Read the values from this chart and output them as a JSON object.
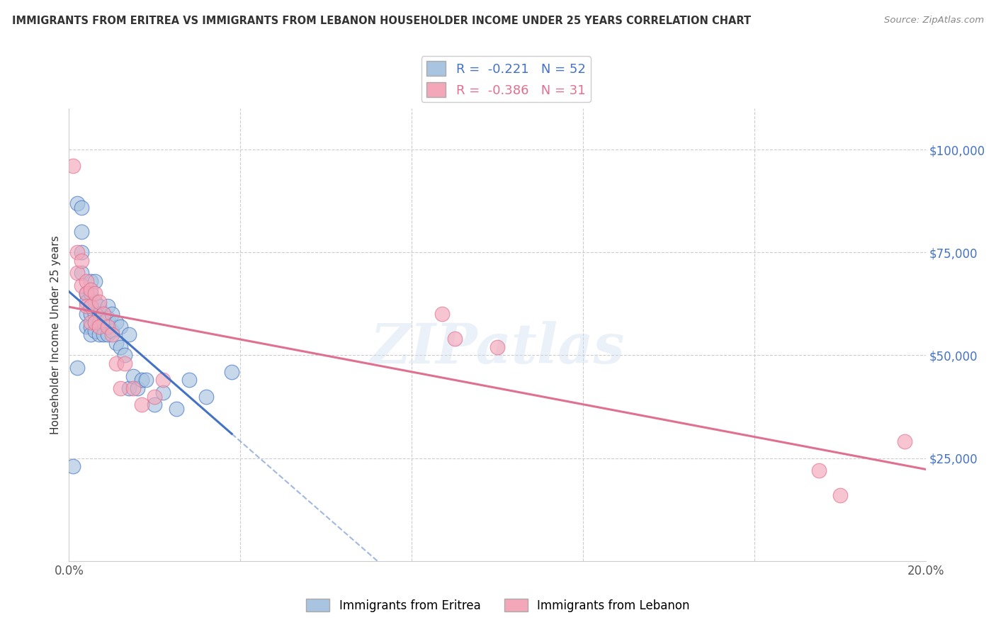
{
  "title": "IMMIGRANTS FROM ERITREA VS IMMIGRANTS FROM LEBANON HOUSEHOLDER INCOME UNDER 25 YEARS CORRELATION CHART",
  "source": "Source: ZipAtlas.com",
  "ylabel": "Householder Income Under 25 years",
  "xlim": [
    0.0,
    0.2
  ],
  "ylim": [
    0,
    110000
  ],
  "yticks": [
    0,
    25000,
    50000,
    75000,
    100000
  ],
  "ytick_labels": [
    "",
    "$25,000",
    "$50,000",
    "$75,000",
    "$100,000"
  ],
  "xticks": [
    0.0,
    0.04,
    0.08,
    0.12,
    0.16,
    0.2
  ],
  "xtick_labels": [
    "0.0%",
    "",
    "",
    "",
    "",
    "20.0%"
  ],
  "legend_eritrea_r": "-0.221",
  "legend_eritrea_n": "52",
  "legend_lebanon_r": "-0.386",
  "legend_lebanon_n": "31",
  "eritrea_color": "#a8c4e0",
  "lebanon_color": "#f4a7b9",
  "trendline_eritrea_color": "#4472c4",
  "trendline_lebanon_color": "#e07090",
  "watermark": "ZIPatlas",
  "eritrea_x": [
    0.001,
    0.002,
    0.002,
    0.003,
    0.003,
    0.003,
    0.003,
    0.004,
    0.004,
    0.004,
    0.004,
    0.004,
    0.005,
    0.005,
    0.005,
    0.005,
    0.005,
    0.005,
    0.006,
    0.006,
    0.006,
    0.006,
    0.006,
    0.007,
    0.007,
    0.007,
    0.007,
    0.008,
    0.008,
    0.008,
    0.009,
    0.009,
    0.009,
    0.01,
    0.01,
    0.011,
    0.011,
    0.012,
    0.012,
    0.013,
    0.014,
    0.014,
    0.015,
    0.016,
    0.017,
    0.018,
    0.02,
    0.022,
    0.025,
    0.028,
    0.032,
    0.038
  ],
  "eritrea_y": [
    23000,
    47000,
    87000,
    86000,
    80000,
    75000,
    70000,
    65000,
    65000,
    63000,
    60000,
    57000,
    68000,
    65000,
    62000,
    60000,
    57000,
    55000,
    68000,
    63000,
    60000,
    58000,
    56000,
    62000,
    60000,
    58000,
    55000,
    60000,
    58000,
    55000,
    62000,
    59000,
    55000,
    60000,
    56000,
    58000,
    53000,
    57000,
    52000,
    50000,
    55000,
    42000,
    45000,
    42000,
    44000,
    44000,
    38000,
    41000,
    37000,
    44000,
    40000,
    46000
  ],
  "lebanon_x": [
    0.001,
    0.002,
    0.002,
    0.003,
    0.003,
    0.004,
    0.004,
    0.004,
    0.005,
    0.005,
    0.005,
    0.006,
    0.006,
    0.007,
    0.007,
    0.008,
    0.009,
    0.01,
    0.011,
    0.012,
    0.013,
    0.015,
    0.017,
    0.02,
    0.022,
    0.087,
    0.09,
    0.1,
    0.175,
    0.18,
    0.195
  ],
  "lebanon_y": [
    96000,
    75000,
    70000,
    73000,
    67000,
    68000,
    65000,
    62000,
    66000,
    62000,
    58000,
    65000,
    58000,
    63000,
    57000,
    60000,
    57000,
    55000,
    48000,
    42000,
    48000,
    42000,
    38000,
    40000,
    44000,
    60000,
    54000,
    52000,
    22000,
    16000,
    29000
  ]
}
